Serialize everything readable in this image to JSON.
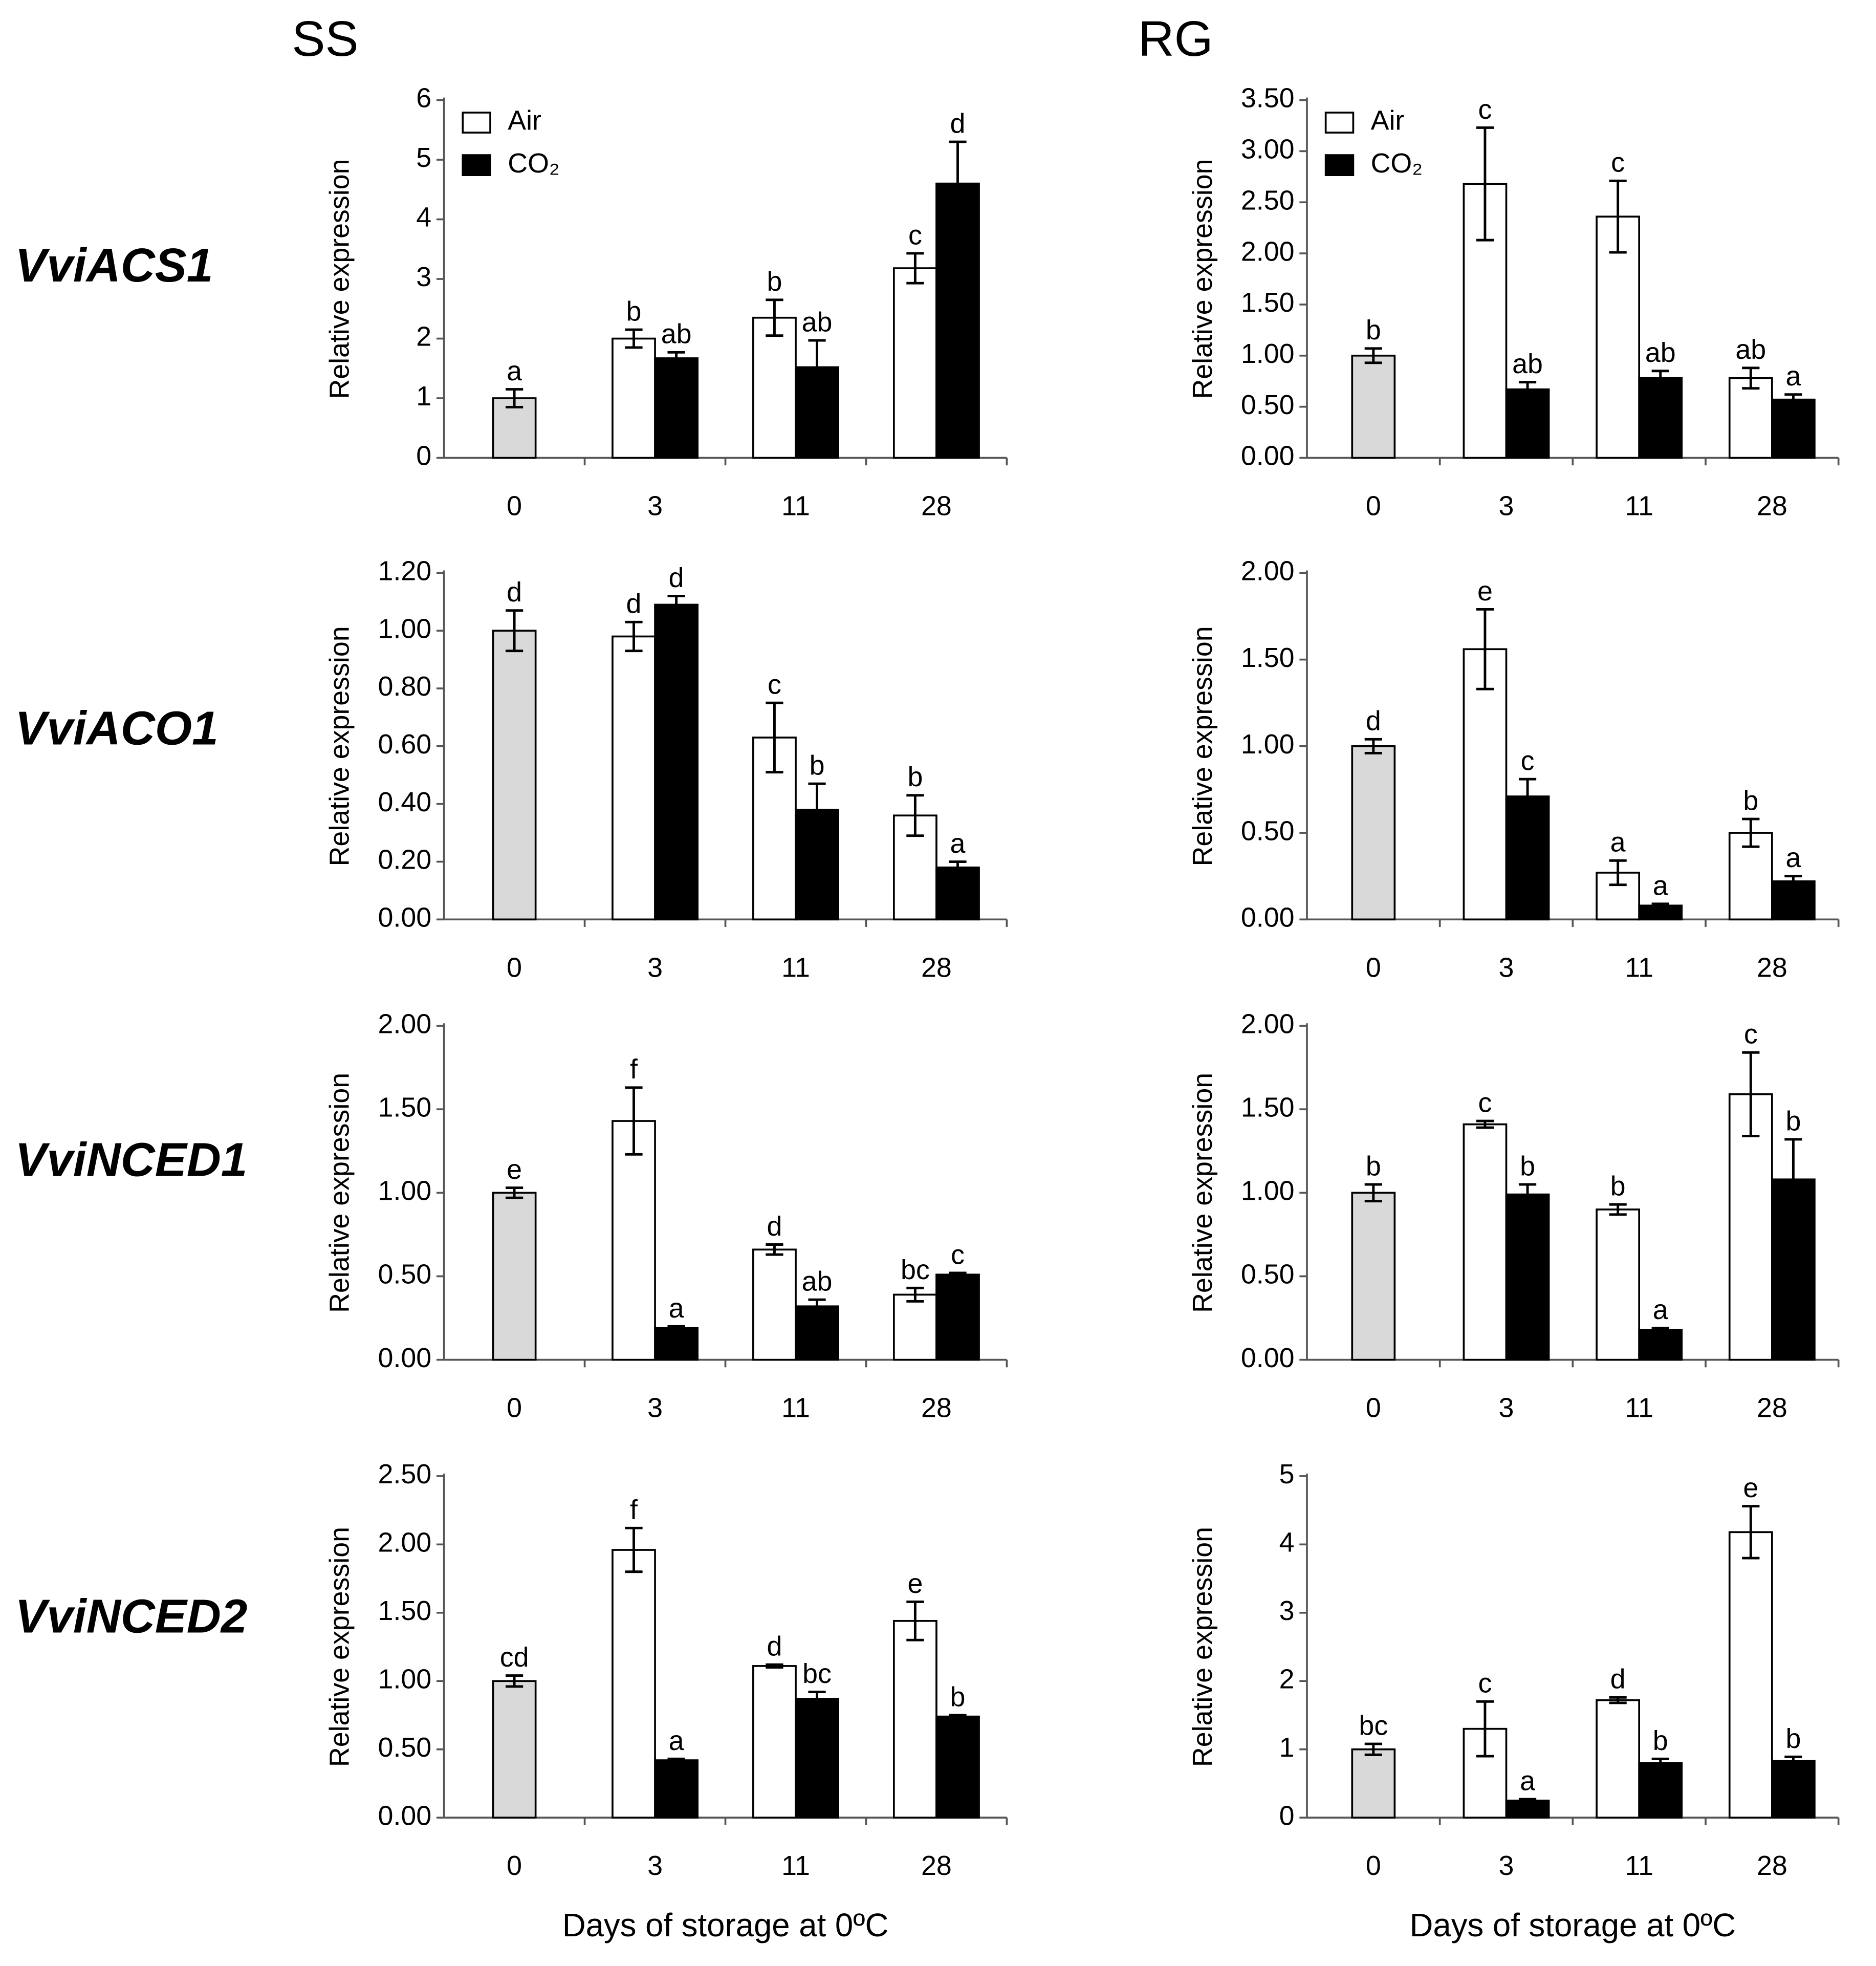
{
  "column_titles": [
    "SS",
    "RG"
  ],
  "row_titles": [
    "VviACS1",
    "VviACO1",
    "VviNCED1",
    "VviNCED2"
  ],
  "chart_data": [
    {
      "type": "bar",
      "ylabel": "Relative expression",
      "categories": [
        "0",
        "3",
        "11",
        "28"
      ],
      "ylim": [
        0,
        6
      ],
      "yticks": [
        0,
        1,
        2,
        3,
        4,
        5,
        6
      ],
      "legend": "upper left",
      "control_color": "#d9d9d9",
      "series": [
        {
          "name": "Air",
          "color": "#ffffff",
          "values": [
            1.0,
            2.0,
            2.35,
            3.18
          ],
          "errors": [
            0.15,
            0.15,
            0.3,
            0.25
          ],
          "annotations": [
            "a",
            "b",
            "b",
            "c"
          ]
        },
        {
          "name": "CO₂",
          "color": "#000000",
          "values": [
            null,
            1.67,
            1.52,
            4.6
          ],
          "errors": [
            null,
            0.1,
            0.45,
            0.7
          ],
          "annotations": [
            null,
            "ab",
            "ab",
            "d"
          ]
        }
      ]
    },
    {
      "type": "bar",
      "ylabel": "Relative expression",
      "categories": [
        "0",
        "3",
        "11",
        "28"
      ],
      "ylim": [
        0,
        3.5
      ],
      "yticks": [
        {
          "value": 0,
          "label": "0.00"
        },
        {
          "value": 0.5,
          "label": "0.50"
        },
        {
          "value": 1,
          "label": "1.00"
        },
        {
          "value": 1.5,
          "label": "1.50"
        },
        {
          "value": 2,
          "label": "2.00"
        },
        {
          "value": 2.5,
          "label": "2.50"
        },
        {
          "value": 3,
          "label": "3.00"
        },
        {
          "value": 3.5,
          "label": "3.50"
        }
      ],
      "legend": "upper left",
      "control_color": "#d9d9d9",
      "series": [
        {
          "name": "Air",
          "color": "#ffffff",
          "values": [
            1.0,
            2.68,
            2.36,
            0.78
          ],
          "errors": [
            0.07,
            0.55,
            0.35,
            0.1
          ],
          "annotations": [
            "b",
            "c",
            "c",
            "ab"
          ]
        },
        {
          "name": "CO₂",
          "color": "#000000",
          "values": [
            null,
            0.67,
            0.78,
            0.57
          ],
          "errors": [
            null,
            0.07,
            0.07,
            0.05
          ],
          "annotations": [
            null,
            "ab",
            "ab",
            "a"
          ]
        }
      ]
    },
    {
      "type": "bar",
      "ylabel": "Relative expression",
      "categories": [
        "0",
        "3",
        "11",
        "28"
      ],
      "ylim": [
        0,
        1.2
      ],
      "yticks": [
        {
          "value": 0,
          "label": "0.00"
        },
        {
          "value": 0.2,
          "label": "0.20"
        },
        {
          "value": 0.4,
          "label": "0.40"
        },
        {
          "value": 0.6,
          "label": "0.60"
        },
        {
          "value": 0.8,
          "label": "0.80"
        },
        {
          "value": 1,
          "label": "1.00"
        },
        {
          "value": 1.2,
          "label": "1.20"
        }
      ],
      "control_color": "#d9d9d9",
      "series": [
        {
          "name": "Air",
          "color": "#ffffff",
          "values": [
            1.0,
            0.98,
            0.63,
            0.36
          ],
          "errors": [
            0.07,
            0.05,
            0.12,
            0.07
          ],
          "annotations": [
            "d",
            "d",
            "c",
            "b"
          ]
        },
        {
          "name": "CO₂",
          "color": "#000000",
          "values": [
            null,
            1.09,
            0.38,
            0.18
          ],
          "errors": [
            null,
            0.03,
            0.09,
            0.02
          ],
          "annotations": [
            null,
            "d",
            "b",
            "a"
          ]
        }
      ]
    },
    {
      "type": "bar",
      "ylabel": "Relative expression",
      "categories": [
        "0",
        "3",
        "11",
        "28"
      ],
      "ylim": [
        0,
        2
      ],
      "yticks": [
        {
          "value": 0,
          "label": "0.00"
        },
        {
          "value": 0.5,
          "label": "0.50"
        },
        {
          "value": 1,
          "label": "1.00"
        },
        {
          "value": 1.5,
          "label": "1.50"
        },
        {
          "value": 2,
          "label": "2.00"
        }
      ],
      "control_color": "#d9d9d9",
      "series": [
        {
          "name": "Air",
          "color": "#ffffff",
          "values": [
            1.0,
            1.56,
            0.27,
            0.5
          ],
          "errors": [
            0.04,
            0.23,
            0.07,
            0.08
          ],
          "annotations": [
            "d",
            "e",
            "a",
            "b"
          ]
        },
        {
          "name": "CO₂",
          "color": "#000000",
          "values": [
            null,
            0.71,
            0.08,
            0.22
          ],
          "errors": [
            null,
            0.1,
            0.01,
            0.03
          ],
          "annotations": [
            null,
            "c",
            "a",
            "a"
          ]
        }
      ]
    },
    {
      "type": "bar",
      "ylabel": "Relative expression",
      "categories": [
        "0",
        "3",
        "11",
        "28"
      ],
      "ylim": [
        0,
        2
      ],
      "yticks": [
        {
          "value": 0,
          "label": "0.00"
        },
        {
          "value": 0.5,
          "label": "0.50"
        },
        {
          "value": 1,
          "label": "1.00"
        },
        {
          "value": 1.5,
          "label": "1.50"
        },
        {
          "value": 2,
          "label": "2.00"
        }
      ],
      "control_color": "#d9d9d9",
      "series": [
        {
          "name": "Air",
          "color": "#ffffff",
          "values": [
            1.0,
            1.43,
            0.66,
            0.39
          ],
          "errors": [
            0.03,
            0.2,
            0.03,
            0.04
          ],
          "annotations": [
            "e",
            "f",
            "d",
            "bc"
          ]
        },
        {
          "name": "CO₂",
          "color": "#000000",
          "values": [
            null,
            0.19,
            0.32,
            0.51
          ],
          "errors": [
            null,
            0.01,
            0.04,
            0.01
          ],
          "annotations": [
            null,
            "a",
            "ab",
            "c"
          ]
        }
      ]
    },
    {
      "type": "bar",
      "ylabel": "Relative expression",
      "categories": [
        "0",
        "3",
        "11",
        "28"
      ],
      "ylim": [
        0,
        2
      ],
      "yticks": [
        {
          "value": 0,
          "label": "0.00"
        },
        {
          "value": 0.5,
          "label": "0.50"
        },
        {
          "value": 1,
          "label": "1.00"
        },
        {
          "value": 1.5,
          "label": "1.50"
        },
        {
          "value": 2,
          "label": "2.00"
        }
      ],
      "control_color": "#d9d9d9",
      "series": [
        {
          "name": "Air",
          "color": "#ffffff",
          "values": [
            1.0,
            1.41,
            0.9,
            1.59
          ],
          "errors": [
            0.05,
            0.02,
            0.03,
            0.25
          ],
          "annotations": [
            "b",
            "c",
            "b",
            "c"
          ]
        },
        {
          "name": "CO₂",
          "color": "#000000",
          "values": [
            null,
            0.99,
            0.18,
            1.08
          ],
          "errors": [
            null,
            0.06,
            0.01,
            0.24
          ],
          "annotations": [
            null,
            "b",
            "a",
            "b"
          ]
        }
      ]
    },
    {
      "type": "bar",
      "ylabel": "Relative expression",
      "xlabel": "Days of storage at 0ºC",
      "categories": [
        "0",
        "3",
        "11",
        "28"
      ],
      "ylim": [
        0,
        2.5
      ],
      "yticks": [
        {
          "value": 0,
          "label": "0.00"
        },
        {
          "value": 0.5,
          "label": "0.50"
        },
        {
          "value": 1,
          "label": "1.00"
        },
        {
          "value": 1.5,
          "label": "1.50"
        },
        {
          "value": 2,
          "label": "2.00"
        },
        {
          "value": 2.5,
          "label": "2.50"
        }
      ],
      "control_color": "#d9d9d9",
      "series": [
        {
          "name": "Air",
          "color": "#ffffff",
          "values": [
            1.0,
            1.96,
            1.11,
            1.44
          ],
          "errors": [
            0.04,
            0.16,
            0.01,
            0.14
          ],
          "annotations": [
            "cd",
            "f",
            "d",
            "e"
          ]
        },
        {
          "name": "CO₂",
          "color": "#000000",
          "values": [
            null,
            0.42,
            0.87,
            0.74
          ],
          "errors": [
            null,
            0.01,
            0.05,
            0.01
          ],
          "annotations": [
            null,
            "a",
            "bc",
            "b"
          ]
        }
      ]
    },
    {
      "type": "bar",
      "ylabel": "Relative expression",
      "xlabel": "Days of storage at 0ºC",
      "categories": [
        "0",
        "3",
        "11",
        "28"
      ],
      "ylim": [
        0,
        5
      ],
      "yticks": [
        0,
        1,
        2,
        3,
        4,
        5
      ],
      "control_color": "#d9d9d9",
      "series": [
        {
          "name": "Air",
          "color": "#ffffff",
          "values": [
            1.0,
            1.3,
            1.72,
            4.18
          ],
          "errors": [
            0.08,
            0.4,
            0.04,
            0.38
          ],
          "annotations": [
            "bc",
            "c",
            "d",
            "e"
          ]
        },
        {
          "name": "CO₂",
          "color": "#000000",
          "values": [
            null,
            0.25,
            0.8,
            0.83
          ],
          "errors": [
            null,
            0.02,
            0.06,
            0.06
          ],
          "annotations": [
            null,
            "a",
            "b",
            "b"
          ]
        }
      ]
    }
  ]
}
